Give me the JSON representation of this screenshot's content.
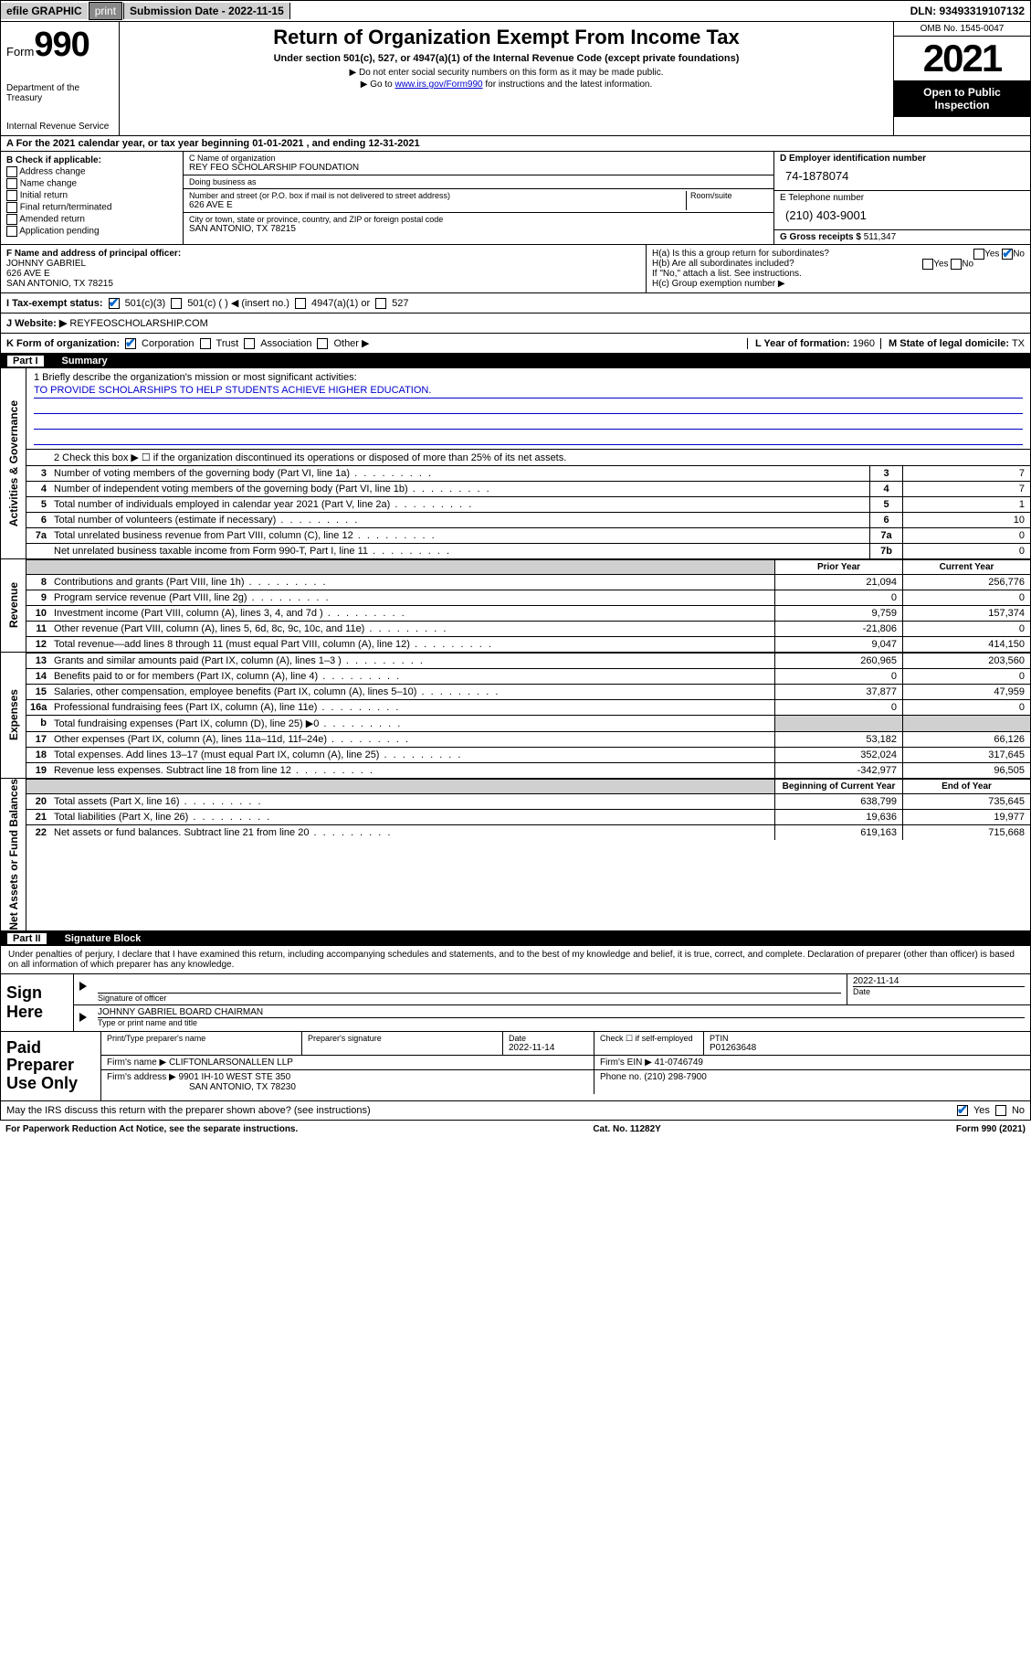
{
  "topbar": {
    "efile": "efile GRAPHIC",
    "print": "print",
    "submission": "Submission Date - 2022-11-15",
    "dln": "DLN: 93493319107132"
  },
  "header": {
    "form_label": "Form",
    "form_no": "990",
    "dept": "Department of the Treasury",
    "irs": "Internal Revenue Service",
    "title": "Return of Organization Exempt From Income Tax",
    "subtitle": "Under section 501(c), 527, or 4947(a)(1) of the Internal Revenue Code (except private foundations)",
    "note1": "▶ Do not enter social security numbers on this form as it may be made public.",
    "note2_pre": "▶ Go to ",
    "note2_link": "www.irs.gov/Form990",
    "note2_post": " for instructions and the latest information.",
    "omb": "OMB No. 1545-0047",
    "year": "2021",
    "open": "Open to Public Inspection"
  },
  "rowA": "A For the 2021 calendar year, or tax year beginning 01-01-2021   , and ending 12-31-2021",
  "B": {
    "label": "B Check if applicable:",
    "items": [
      "Address change",
      "Name change",
      "Initial return",
      "Final return/terminated",
      "Amended return",
      "Application pending"
    ]
  },
  "C": {
    "name_label": "C Name of organization",
    "name": "REY FEO SCHOLARSHIP FOUNDATION",
    "dba_label": "Doing business as",
    "dba": "",
    "addr_label": "Number and street (or P.O. box if mail is not delivered to street address)",
    "room_label": "Room/suite",
    "addr": "626 AVE E",
    "city_label": "City or town, state or province, country, and ZIP or foreign postal code",
    "city": "SAN ANTONIO, TX  78215"
  },
  "D": {
    "label": "D Employer identification number",
    "value": "74-1878074"
  },
  "E": {
    "label": "E Telephone number",
    "value": "(210) 403-9001"
  },
  "G": {
    "label": "G Gross receipts $",
    "value": "511,347"
  },
  "F": {
    "label": "F  Name and address of principal officer:",
    "name": "JOHNNY GABRIEL",
    "addr1": "626 AVE E",
    "addr2": "SAN ANTONIO, TX  78215"
  },
  "H": {
    "a": "H(a)  Is this a group return for subordinates?",
    "a_yes": "Yes",
    "a_no": "No",
    "b": "H(b)  Are all subordinates included?",
    "b_yes": "Yes",
    "b_no": "No",
    "b_note": "If \"No,\" attach a list. See instructions.",
    "c": "H(c)  Group exemption number ▶"
  },
  "I": {
    "label": "I   Tax-exempt status:",
    "o1": "501(c)(3)",
    "o2": "501(c) (  ) ◀ (insert no.)",
    "o3": "4947(a)(1) or",
    "o4": "527"
  },
  "J": {
    "label": "J   Website: ▶",
    "value": "REYFEOSCHOLARSHIP.COM"
  },
  "K": {
    "label": "K Form of organization:",
    "o1": "Corporation",
    "o2": "Trust",
    "o3": "Association",
    "o4": "Other ▶"
  },
  "L": {
    "label": "L Year of formation:",
    "value": "1960"
  },
  "M": {
    "label": "M State of legal domicile:",
    "value": "TX"
  },
  "part1": {
    "num": "Part I",
    "title": "Summary"
  },
  "mission": {
    "q": "1   Briefly describe the organization's mission or most significant activities:",
    "text": "TO PROVIDE SCHOLARSHIPS TO HELP STUDENTS ACHIEVE HIGHER EDUCATION."
  },
  "line2": "2   Check this box ▶ ☐  if the organization discontinued its operations or disposed of more than 25% of its net assets.",
  "gov_rows": [
    {
      "n": "3",
      "t": "Number of voting members of the governing body (Part VI, line 1a)",
      "box": "3",
      "v": "7"
    },
    {
      "n": "4",
      "t": "Number of independent voting members of the governing body (Part VI, line 1b)",
      "box": "4",
      "v": "7"
    },
    {
      "n": "5",
      "t": "Total number of individuals employed in calendar year 2021 (Part V, line 2a)",
      "box": "5",
      "v": "1"
    },
    {
      "n": "6",
      "t": "Total number of volunteers (estimate if necessary)",
      "box": "6",
      "v": "10"
    },
    {
      "n": "7a",
      "t": "Total unrelated business revenue from Part VIII, column (C), line 12",
      "box": "7a",
      "v": "0"
    },
    {
      "n": "",
      "t": "Net unrelated business taxable income from Form 990-T, Part I, line 11",
      "box": "7b",
      "v": "0"
    }
  ],
  "col_hdr": {
    "prior": "Prior Year",
    "current": "Current Year"
  },
  "rev_rows": [
    {
      "n": "8",
      "t": "Contributions and grants (Part VIII, line 1h)",
      "p": "21,094",
      "c": "256,776"
    },
    {
      "n": "9",
      "t": "Program service revenue (Part VIII, line 2g)",
      "p": "0",
      "c": "0"
    },
    {
      "n": "10",
      "t": "Investment income (Part VIII, column (A), lines 3, 4, and 7d )",
      "p": "9,759",
      "c": "157,374"
    },
    {
      "n": "11",
      "t": "Other revenue (Part VIII, column (A), lines 5, 6d, 8c, 9c, 10c, and 11e)",
      "p": "-21,806",
      "c": "0"
    },
    {
      "n": "12",
      "t": "Total revenue—add lines 8 through 11 (must equal Part VIII, column (A), line 12)",
      "p": "9,047",
      "c": "414,150"
    }
  ],
  "exp_rows": [
    {
      "n": "13",
      "t": "Grants and similar amounts paid (Part IX, column (A), lines 1–3 )",
      "p": "260,965",
      "c": "203,560"
    },
    {
      "n": "14",
      "t": "Benefits paid to or for members (Part IX, column (A), line 4)",
      "p": "0",
      "c": "0"
    },
    {
      "n": "15",
      "t": "Salaries, other compensation, employee benefits (Part IX, column (A), lines 5–10)",
      "p": "37,877",
      "c": "47,959"
    },
    {
      "n": "16a",
      "t": "Professional fundraising fees (Part IX, column (A), line 11e)",
      "p": "0",
      "c": "0"
    },
    {
      "n": "b",
      "t": "Total fundraising expenses (Part IX, column (D), line 25) ▶0",
      "p": "",
      "c": "",
      "shade": true
    },
    {
      "n": "17",
      "t": "Other expenses (Part IX, column (A), lines 11a–11d, 11f–24e)",
      "p": "53,182",
      "c": "66,126"
    },
    {
      "n": "18",
      "t": "Total expenses. Add lines 13–17 (must equal Part IX, column (A), line 25)",
      "p": "352,024",
      "c": "317,645"
    },
    {
      "n": "19",
      "t": "Revenue less expenses. Subtract line 18 from line 12",
      "p": "-342,977",
      "c": "96,505"
    }
  ],
  "net_hdr": {
    "beg": "Beginning of Current Year",
    "end": "End of Year"
  },
  "net_rows": [
    {
      "n": "20",
      "t": "Total assets (Part X, line 16)",
      "p": "638,799",
      "c": "735,645"
    },
    {
      "n": "21",
      "t": "Total liabilities (Part X, line 26)",
      "p": "19,636",
      "c": "19,977"
    },
    {
      "n": "22",
      "t": "Net assets or fund balances. Subtract line 21 from line 20",
      "p": "619,163",
      "c": "715,668"
    }
  ],
  "tabs": {
    "gov": "Activities & Governance",
    "rev": "Revenue",
    "exp": "Expenses",
    "net": "Net Assets or Fund Balances"
  },
  "part2": {
    "num": "Part II",
    "title": "Signature Block"
  },
  "sig": {
    "decl": "Under penalties of perjury, I declare that I have examined this return, including accompanying schedules and statements, and to the best of my knowledge and belief, it is true, correct, and complete. Declaration of preparer (other than officer) is based on all information of which preparer has any knowledge.",
    "sign_here": "Sign Here",
    "sig_officer": "Signature of officer",
    "date": "Date",
    "date_val": "2022-11-14",
    "name_title": "JOHNNY GABRIEL  BOARD CHAIRMAN",
    "type_name": "Type or print name and title"
  },
  "paid": {
    "label": "Paid Preparer Use Only",
    "h1": "Print/Type preparer's name",
    "h2": "Preparer's signature",
    "h3": "Date",
    "h3v": "2022-11-14",
    "h4": "Check ☐ if self-employed",
    "h5": "PTIN",
    "h5v": "P01263648",
    "firm_name_l": "Firm's name    ▶",
    "firm_name": "CLIFTONLARSONALLEN LLP",
    "firm_ein_l": "Firm's EIN ▶",
    "firm_ein": "41-0746749",
    "firm_addr_l": "Firm's address ▶",
    "firm_addr1": "9901 IH-10 WEST STE 350",
    "firm_addr2": "SAN ANTONIO, TX  78230",
    "phone_l": "Phone no.",
    "phone": "(210) 298-7900"
  },
  "discuss": {
    "q": "May the IRS discuss this return with the preparer shown above? (see instructions)",
    "yes": "Yes",
    "no": "No"
  },
  "footer": {
    "left": "For Paperwork Reduction Act Notice, see the separate instructions.",
    "mid": "Cat. No. 11282Y",
    "right": "Form 990 (2021)"
  }
}
